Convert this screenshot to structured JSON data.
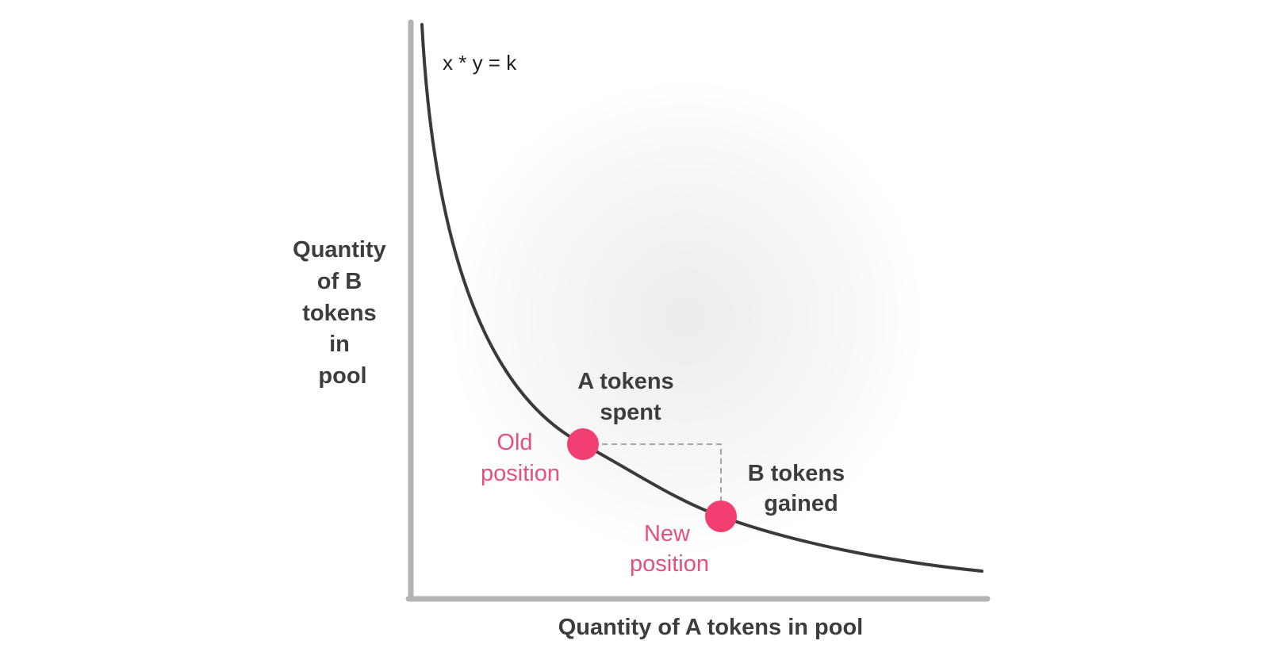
{
  "equation": "x * y = k",
  "y_axis_label": [
    "Quantity",
    "of B",
    "tokens",
    "in",
    "pool"
  ],
  "x_axis_label": "Quantity of A tokens in pool",
  "a_tokens_spent": [
    "A tokens",
    "spent"
  ],
  "b_tokens_gained": [
    "B tokens",
    "gained"
  ],
  "old_position": [
    "Old",
    "position"
  ],
  "new_position": [
    "New",
    "position"
  ]
}
